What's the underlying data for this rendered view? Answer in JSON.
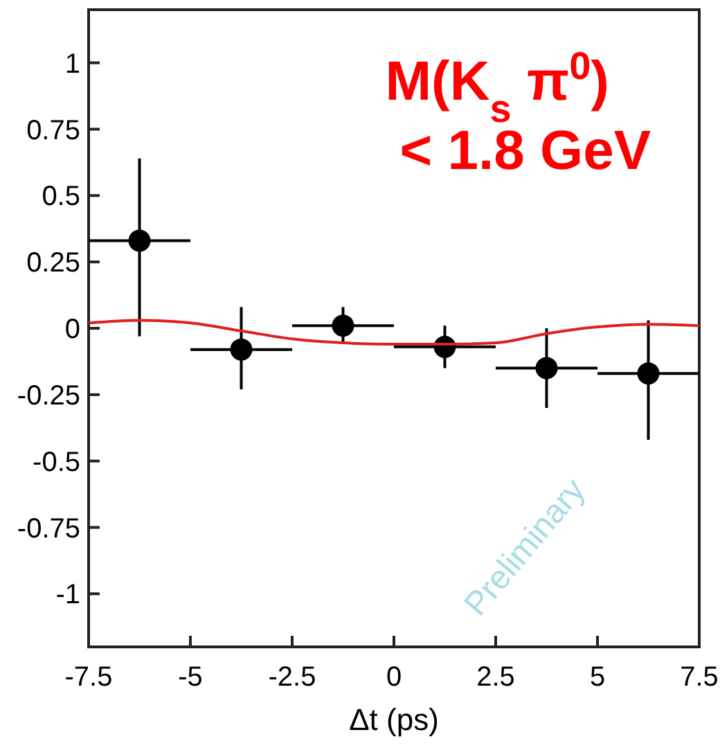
{
  "chart_data": {
    "type": "scatter",
    "xlabel": "Δt (ps)",
    "annotations": [
      "M(K$_{s}$ π$^{0}$)",
      "< 1.8 GeV",
      "Preliminary"
    ],
    "xlim": [
      -7.5,
      7.5
    ],
    "xticks": [
      -7.5,
      -5,
      -2.5,
      0,
      2.5,
      5,
      7.5
    ],
    "ylim": [
      -1.2,
      1.2
    ],
    "yticks": [
      -1,
      -0.75,
      -0.5,
      -0.25,
      0,
      0.25,
      0.5,
      0.75,
      1
    ],
    "grid": false,
    "series": [
      {
        "color": "#000000",
        "marker": "circle",
        "x": [
          -6.25,
          -3.75,
          -1.25,
          1.25,
          3.75,
          6.25
        ],
        "values": [
          0.33,
          -0.08,
          0.01,
          -0.07,
          -0.15,
          -0.17
        ],
        "errors": [
          [
            -0.03,
            0.64
          ],
          [
            -0.23,
            0.08
          ],
          [
            -0.06,
            0.08
          ],
          [
            -0.15,
            0.01
          ],
          [
            -0.3,
            0.0
          ],
          [
            -0.42,
            0.03
          ]
        ],
        "xerrors": [
          1.25,
          1.25,
          1.25,
          1.25,
          1.25,
          1.25
        ]
      },
      {
        "type": "line",
        "color": "#e02020",
        "marker": "none",
        "line_style": "solid",
        "x": [
          -7.5,
          -6.25,
          -5,
          -3.75,
          -2.5,
          -1.25,
          0,
          1.25,
          2.5,
          3.75,
          5,
          6.25,
          7.5
        ],
        "values": [
          0.02,
          0.03,
          0.02,
          -0.01,
          -0.04,
          -0.055,
          -0.06,
          -0.06,
          -0.055,
          -0.02,
          0.005,
          0.015,
          0.01
        ]
      }
    ]
  }
}
